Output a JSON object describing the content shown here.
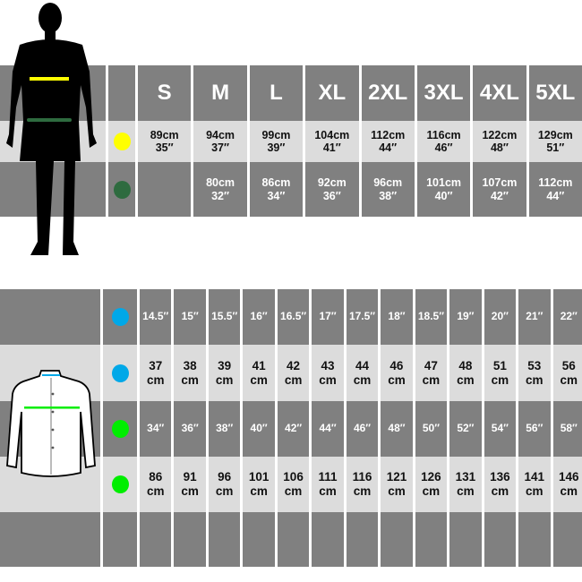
{
  "top_table": {
    "sizes": [
      "S",
      "M",
      "L",
      "XL",
      "2XL",
      "3XL",
      "4XL",
      "5XL"
    ],
    "rows": [
      {
        "dot_color": "#ffff00",
        "values": [
          "89cm\n35″",
          "94cm\n37″",
          "99cm\n39″",
          "104cm\n41″",
          "112cm\n44″",
          "116cm\n46″",
          "122cm\n48″",
          "129cm\n51″"
        ]
      },
      {
        "dot_color": "#2e6b3f",
        "values": [
          "",
          "80cm\n32″",
          "86cm\n34″",
          "92cm\n36″",
          "96cm\n38″",
          "101cm\n40″",
          "107cm\n42″",
          "112cm\n44″"
        ]
      }
    ]
  },
  "bottom_table": {
    "rows": [
      {
        "dot_color": "#00a8e8",
        "values": [
          "14.5″",
          "15″",
          "15.5″",
          "16″",
          "16.5″",
          "17″",
          "17.5″",
          "18″",
          "18.5″",
          "19″",
          "20″",
          "21″",
          "22″"
        ]
      },
      {
        "dot_color": "#00a8e8",
        "values": [
          "37\ncm",
          "38\ncm",
          "39\ncm",
          "41\ncm",
          "42\ncm",
          "43\ncm",
          "44\ncm",
          "46\ncm",
          "47\ncm",
          "48\ncm",
          "51\ncm",
          "53\ncm",
          "56\ncm"
        ]
      },
      {
        "dot_color": "#00ee00",
        "values": [
          "34″",
          "36″",
          "38″",
          "40″",
          "42″",
          "44″",
          "46″",
          "48″",
          "50″",
          "52″",
          "54″",
          "56″",
          "58″"
        ]
      },
      {
        "dot_color": "#00ee00",
        "values": [
          "86\ncm",
          "91\ncm",
          "96\ncm",
          "101\ncm",
          "106\ncm",
          "111\ncm",
          "116\ncm",
          "121\ncm",
          "126\ncm",
          "131\ncm",
          "136\ncm",
          "141\ncm",
          "146\ncm"
        ]
      },
      {
        "dot_color": "",
        "values": [
          "",
          "",
          "",
          "",
          "",
          "",
          "",
          "",
          "",
          "",
          "",
          "",
          ""
        ]
      }
    ]
  },
  "colors": {
    "dark": "#808080",
    "light": "#dcdcdc",
    "chest_line": "#ffff00",
    "waist_line": "#2e6b3f",
    "collar_line": "#00a8e8",
    "shirt_chest_line": "#00ee00"
  }
}
